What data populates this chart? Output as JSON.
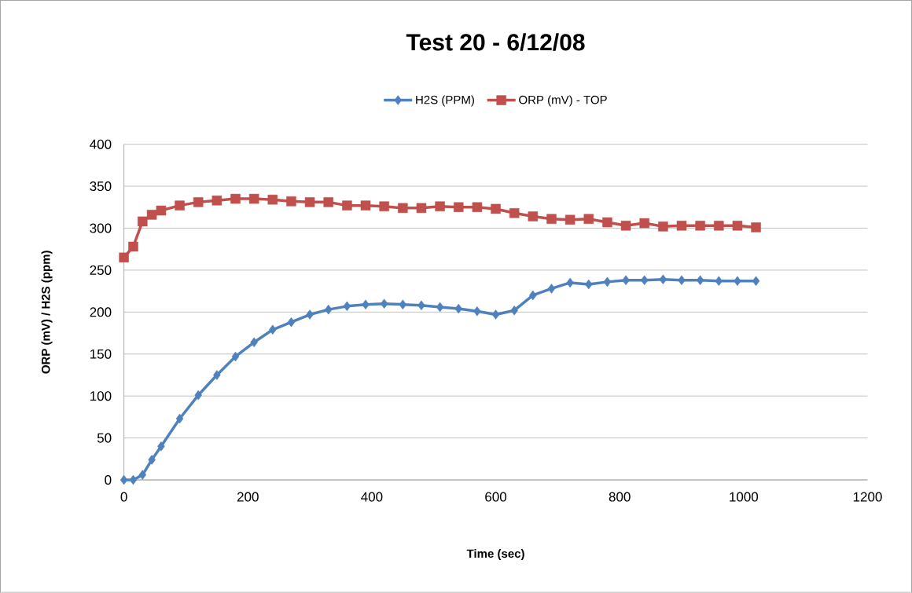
{
  "chart_data": {
    "type": "line",
    "title": "Test 20 - 6/12/08",
    "xlabel": "Time (sec)",
    "ylabel": "ORP (mV) / H2S (ppm)",
    "x": [
      0,
      15,
      30,
      45,
      60,
      90,
      120,
      150,
      180,
      210,
      240,
      270,
      300,
      330,
      360,
      390,
      420,
      450,
      480,
      510,
      540,
      570,
      600,
      630,
      660,
      690,
      720,
      750,
      780,
      810,
      840,
      870,
      900,
      930,
      960,
      990,
      1020
    ],
    "series": [
      {
        "name": "H2S (PPM)",
        "color": "#4f81bd",
        "marker": "diamond",
        "values": [
          0,
          0,
          6,
          24,
          40,
          73,
          101,
          125,
          147,
          164,
          179,
          188,
          197,
          203,
          207,
          209,
          210,
          209,
          208,
          206,
          204,
          201,
          197,
          202,
          220,
          228,
          235,
          233,
          236,
          238,
          238,
          239,
          238,
          238,
          237,
          237,
          237
        ]
      },
      {
        "name": "ORP (mV) - TOP",
        "color": "#c0504d",
        "marker": "square",
        "values": [
          265,
          278,
          308,
          316,
          321,
          327,
          331,
          333,
          335,
          335,
          334,
          332,
          331,
          331,
          327,
          327,
          326,
          324,
          324,
          326,
          325,
          325,
          323,
          318,
          314,
          311,
          310,
          311,
          307,
          303,
          306,
          302,
          303,
          303,
          303,
          303,
          301
        ]
      }
    ],
    "xlim": [
      0,
      1200
    ],
    "xticks": [
      0,
      200,
      400,
      600,
      800,
      1000,
      1200
    ],
    "ylim": [
      0,
      400
    ],
    "yticks": [
      0,
      50,
      100,
      150,
      200,
      250,
      300,
      350,
      400
    ],
    "grid": "y",
    "legend": "top",
    "line_style": "solid"
  }
}
